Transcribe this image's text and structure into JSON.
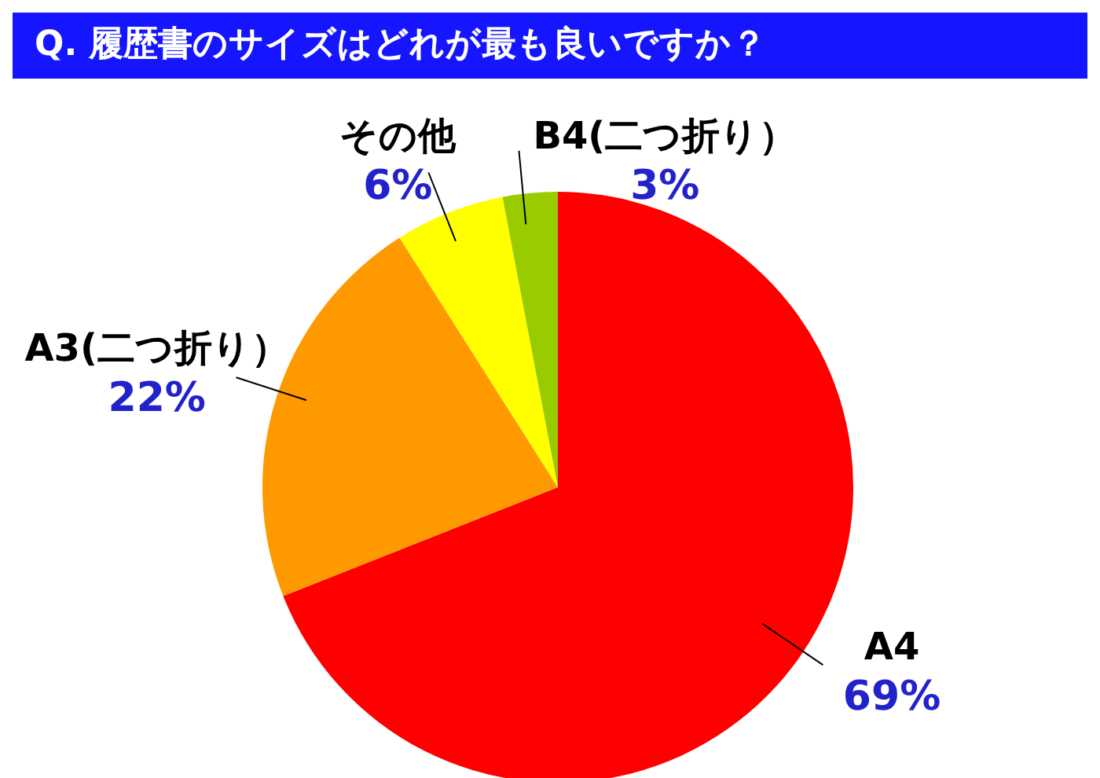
{
  "chart_data": {
    "type": "pie",
    "title": "Q.  履歴書のサイズはどれが最も良いですか？",
    "categories": [
      "A4",
      "A3(二つ折り）",
      "その他",
      "B4(二つ折り）"
    ],
    "values": [
      69,
      22,
      6,
      3
    ],
    "colors": [
      "#ff0000",
      "#ff9900",
      "#ffff00",
      "#99cc00"
    ],
    "value_labels": [
      "69%",
      "22%",
      "6%",
      "3%"
    ]
  }
}
